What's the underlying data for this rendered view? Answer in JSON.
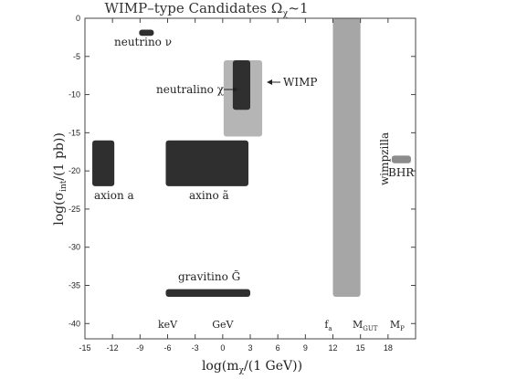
{
  "chart_data": {
    "type": "area",
    "title": "WIMP–type Candidates Ω",
    "title_sub": "χ",
    "title_tail": "~1",
    "xlabel": "log(m",
    "xlabel_sub": "χ",
    "xlabel_tail": "/(1 GeV))",
    "ylabel": "log(σ",
    "ylabel_sub": "int",
    "ylabel_tail": "/(1 pb))",
    "xlim": [
      -15,
      21
    ],
    "ylim": [
      -42,
      0
    ],
    "xticks": [
      -15,
      -12,
      -9,
      -6,
      -3,
      0,
      3,
      6,
      9,
      12,
      15,
      18
    ],
    "yticks": [
      0,
      -5,
      -10,
      -15,
      -20,
      -25,
      -30,
      -35,
      -40
    ],
    "grid": false,
    "regions": [
      {
        "label": "neutrino ν",
        "x": [
          -9.1,
          -7.5
        ],
        "y": [
          -2.3,
          -1.5
        ],
        "color": "#2f2f2f"
      },
      {
        "label": "axion a",
        "x": [
          -14.2,
          -11.8
        ],
        "y": [
          -22,
          -16
        ],
        "color": "#2f2f2f"
      },
      {
        "label": "axino ã",
        "x": [
          -6.2,
          2.8
        ],
        "y": [
          -22,
          -16
        ],
        "color": "#2f2f2f"
      },
      {
        "label": "gravitino G̃",
        "x": [
          -6.2,
          3.0
        ],
        "y": [
          -36.5,
          -35.5
        ],
        "color": "#2f2f2f"
      },
      {
        "label": "WIMP",
        "x": [
          0.1,
          4.3
        ],
        "y": [
          -15.5,
          -5.5
        ],
        "color": "#b5b5b5"
      },
      {
        "label": "neutralino χ",
        "x": [
          1.1,
          3.0
        ],
        "y": [
          -12,
          -5.5
        ],
        "color": "#2f2f2f"
      },
      {
        "label": "wimpzilla",
        "x": [
          12.0,
          15.0
        ],
        "y": [
          -36.5,
          0
        ],
        "color": "#a6a6a6"
      },
      {
        "label": "BHR",
        "x": [
          18.4,
          20.5
        ],
        "y": [
          -19,
          -18
        ],
        "color": "#8c8c8c"
      }
    ],
    "scale_marks": [
      {
        "label": "keV",
        "x": -6
      },
      {
        "label": "GeV",
        "x": 0
      },
      {
        "label": "f",
        "sub": "a",
        "x": 11.5
      },
      {
        "label": "M",
        "sub": "GUT",
        "x": 15.5
      },
      {
        "label": "M",
        "sub": "P",
        "x": 19
      }
    ]
  }
}
